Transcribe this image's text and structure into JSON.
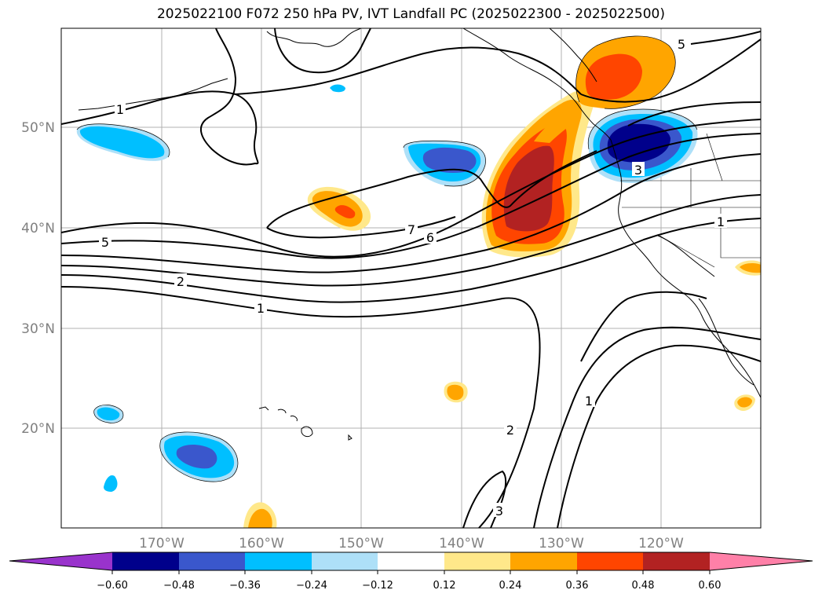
{
  "title": "2025022100 F072 250 hPa PV, IVT Landfall PC (2025022300 - 2025022500)",
  "lon_ticks": [
    "170°W",
    "160°W",
    "150°W",
    "140°W",
    "130°W",
    "120°W"
  ],
  "lat_ticks": [
    "50°N",
    "40°N",
    "30°N",
    "20°N"
  ],
  "colorbar": {
    "labels": [
      "−0.60",
      "−0.48",
      "−0.36",
      "−0.24",
      "−0.12",
      "0.12",
      "0.24",
      "0.36",
      "0.48",
      "0.60"
    ],
    "colors": [
      "#9933cc",
      "#00008b",
      "#3a57cc",
      "#00bfff",
      "#aee0f8",
      "#ffffff",
      "#ffe88a",
      "#ffa500",
      "#ff4500",
      "#b22222",
      "#ff80a8"
    ]
  },
  "contour_labels": {
    "pv_1": "1",
    "pv_2": "2",
    "pv_3": "3",
    "pv_5": "5",
    "pv_6": "6",
    "pv_7": "7"
  }
}
